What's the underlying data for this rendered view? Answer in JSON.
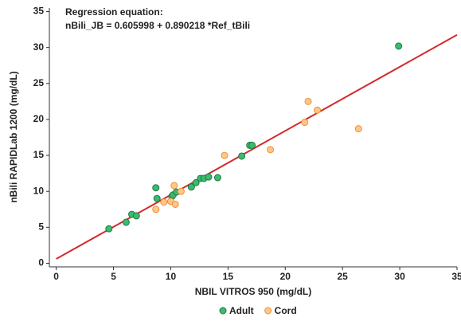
{
  "chart_data": {
    "type": "scatter",
    "annotation_title": "Regression equation:",
    "annotation": "nBili_JB = 0.605998 + 0.890218 *Ref_tBili",
    "x_label": "NBIL VITROS 950 (mg/dL)",
    "y_label": "nBili RAPIDLab 1200 (mg/dL)",
    "xlim": [
      -0.6,
      35
    ],
    "ylim": [
      -0.5,
      35.5
    ],
    "xticks": [
      0,
      5,
      10,
      15,
      20,
      25,
      30,
      35
    ],
    "yticks": [
      0,
      5,
      10,
      15,
      20,
      25,
      30,
      35
    ],
    "fit": {
      "intercept": 0.605998,
      "slope": 0.890218,
      "color": "#d42a2a"
    },
    "series": [
      {
        "name": "Adult",
        "color": "#3dba6f",
        "edge": "#1f7a45",
        "x": [
          4.6,
          6.1,
          6.6,
          7.0,
          8.7,
          8.8,
          10.1,
          10.2,
          10.5,
          11.8,
          12.2,
          12.6,
          12.9,
          13.3,
          14.1,
          16.2,
          16.9,
          17.1,
          29.9
        ],
        "values": [
          4.8,
          5.7,
          6.8,
          6.6,
          10.5,
          9.0,
          9.3,
          9.5,
          9.9,
          10.6,
          11.2,
          11.8,
          11.8,
          12.0,
          11.9,
          14.9,
          16.4,
          16.4,
          30.2
        ]
      },
      {
        "name": "Cord",
        "color": "#fcc78e",
        "edge": "#f0912f",
        "x": [
          8.7,
          9.4,
          10.0,
          10.3,
          10.4,
          10.9,
          14.7,
          18.7,
          21.7,
          22.0,
          22.8,
          26.4
        ],
        "values": [
          7.5,
          8.5,
          8.6,
          10.8,
          8.2,
          10.0,
          15.0,
          15.8,
          19.6,
          22.5,
          21.3,
          18.7
        ]
      }
    ]
  }
}
